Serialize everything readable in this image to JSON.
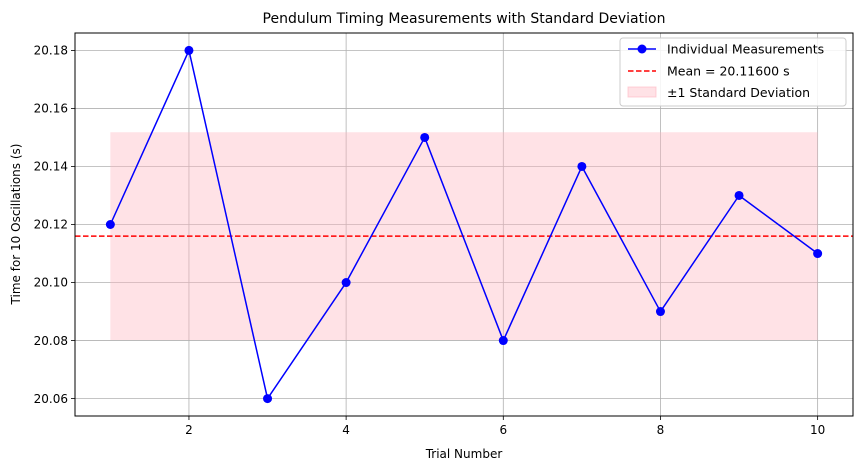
{
  "chart_data": {
    "type": "line",
    "title": "Pendulum Timing Measurements with Standard Deviation",
    "xlabel": "Trial Number",
    "ylabel": "Time for 10 Oscillations (s)",
    "xlim": [
      0.55,
      10.45
    ],
    "ylim": [
      20.054,
      20.186
    ],
    "xticks": [
      2,
      4,
      6,
      8,
      10
    ],
    "yticks": [
      20.06,
      20.08,
      20.1,
      20.12,
      20.14,
      20.16,
      20.18
    ],
    "ytick_labels": [
      "20.06",
      "20.08",
      "20.10",
      "20.12",
      "20.14",
      "20.16",
      "20.18"
    ],
    "grid": true,
    "legend_position": "top-right",
    "series": [
      {
        "name": "Individual Measurements",
        "kind": "line-marker",
        "color": "#0000ff",
        "x": [
          1,
          2,
          3,
          4,
          5,
          6,
          7,
          8,
          9,
          10
        ],
        "values": [
          20.12,
          20.18,
          20.06,
          20.1,
          20.15,
          20.08,
          20.14,
          20.09,
          20.13,
          20.11
        ]
      },
      {
        "name": "Mean = 20.11600 s",
        "kind": "hline",
        "color": "#ff0000",
        "value": 20.116
      },
      {
        "name": "±1 Standard Deviation",
        "kind": "band",
        "color": "#ffb6c1",
        "x_range": [
          1,
          10
        ],
        "lower": 20.0802,
        "upper": 20.1518
      }
    ]
  }
}
